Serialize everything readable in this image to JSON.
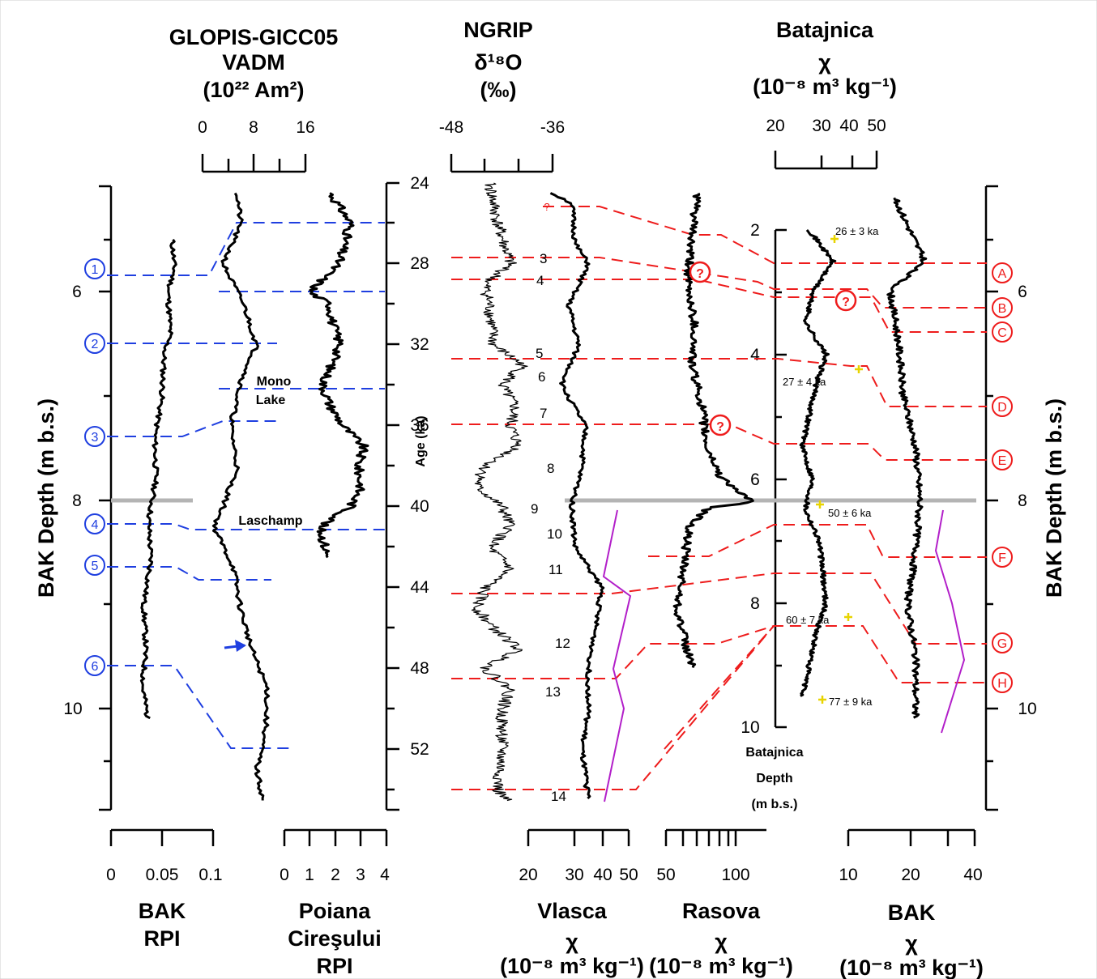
{
  "headers": {
    "glopis": [
      "GLOPIS-GICC05",
      "VADM",
      "(10²² Am²)"
    ],
    "ngrip": [
      "NGRIP",
      "δ¹⁸O",
      "(‰)"
    ],
    "batajnica": [
      "Batajnica",
      "χ",
      "(10⁻⁸ m³ kg⁻¹)"
    ],
    "bak_rpi": [
      "BAK",
      "RPI"
    ],
    "poiana": [
      "Poiana",
      "Cireşului",
      "RPI"
    ],
    "vlasca": [
      "Vlasca",
      "χ",
      "(10⁻⁸ m³ kg⁻¹)"
    ],
    "rasova": [
      "Rasova",
      "χ",
      "(10⁻⁸ m³ kg⁻¹)"
    ],
    "bak_chi": [
      "BAK",
      "χ",
      "(10⁻⁸ m³ kg⁻¹)"
    ]
  },
  "axis_labels": {
    "bak_depth_left": "BAK Depth (m b.s.)",
    "bak_depth_right": "BAK Depth (m b.s.)",
    "age": "Age (ka)",
    "batajnica_depth": [
      "Batajnica",
      "Depth",
      "(m b.s.)"
    ]
  },
  "ticks": {
    "glopis": [
      "0",
      "8",
      "16"
    ],
    "ngrip": [
      "-48",
      "-36"
    ],
    "batajnica_top": [
      "20",
      "30",
      "40",
      "50"
    ],
    "bak_depth": [
      "6",
      "8",
      "10"
    ],
    "age": [
      "24",
      "28",
      "32",
      "36",
      "40",
      "44",
      "48",
      "52"
    ],
    "batajnica_depth": [
      "2",
      "4",
      "6",
      "8",
      "10"
    ],
    "bak_rpi": [
      "0",
      "0.05",
      "0.1"
    ],
    "poiana": [
      "0",
      "1",
      "2",
      "3",
      "4"
    ],
    "vlasca": [
      "20",
      "30",
      "40",
      "50"
    ],
    "rasova": [
      "50",
      "100"
    ],
    "bak_chi": [
      "10",
      "20",
      "40"
    ]
  },
  "annotations": {
    "mono_lake": [
      "Mono",
      "Lake"
    ],
    "laschamp": "Laschamp",
    "question": "?",
    "red_q": "?",
    "blue_markers": [
      "1",
      "2",
      "3",
      "4",
      "5",
      "6"
    ],
    "red_markers": [
      "A",
      "B",
      "C",
      "D",
      "E",
      "F",
      "G",
      "H"
    ],
    "events": [
      "3",
      "4",
      "5",
      "6",
      "7",
      "8",
      "9",
      "10",
      "11",
      "12",
      "13",
      "14"
    ],
    "dates": [
      "26 ± 3 ka",
      "27 ± 4 ka",
      "50 ± 6 ka",
      "60 ± 7 ka",
      "77 ± 9 ka"
    ]
  },
  "chart_data": {
    "type": "line",
    "panels": [
      {
        "name": "BAK RPI",
        "x_unit": "RPI",
        "xlim": [
          0,
          0.1
        ],
        "y_axis": "BAK Depth (m b.s.)",
        "ylim": [
          4.4,
          10.5
        ],
        "depth": [
          5.5,
          5.8,
          6.0,
          6.4,
          6.6,
          7.0,
          7.4,
          7.8,
          8.2,
          8.6,
          9.0,
          9.4,
          9.8,
          10.1
        ],
        "values": [
          0.06,
          0.062,
          0.056,
          0.058,
          0.052,
          0.05,
          0.043,
          0.044,
          0.037,
          0.039,
          0.032,
          0.034,
          0.031,
          0.036
        ]
      },
      {
        "name": "GLOPIS-GICC05 VADM",
        "x_unit": "10^22 Am^2",
        "xlim": [
          0,
          16
        ],
        "y_axis": "Age (ka)",
        "ylim": [
          24,
          55
        ],
        "age": [
          24.5,
          26,
          28,
          30,
          32,
          34,
          36,
          38,
          40,
          41,
          43,
          45,
          47,
          49,
          51,
          53,
          54.5
        ],
        "values": [
          5.4,
          5.9,
          3.2,
          6.4,
          8.4,
          5.8,
          4.4,
          5.4,
          3.2,
          1.8,
          4.8,
          5.9,
          7.6,
          10.1,
          9.8,
          8.4,
          9.4
        ]
      },
      {
        "name": "Poiana Cireşului RPI",
        "x_unit": "RPI",
        "xlim": [
          0,
          4
        ],
        "y_axis": "Age (ka)",
        "ylim": [
          24,
          55
        ],
        "age": [
          24.5,
          26,
          28,
          29.4,
          30,
          31,
          32,
          34,
          35,
          36,
          37,
          38,
          39,
          40,
          41,
          42.5
        ],
        "values": [
          1.8,
          2.6,
          2.1,
          1.0,
          1.8,
          1.9,
          2.2,
          1.5,
          1.8,
          2.3,
          3.1,
          2.9,
          3.0,
          2.6,
          1.4,
          1.7
        ]
      },
      {
        "name": "NGRIP δ18O",
        "x_unit": "‰",
        "xlim": [
          -48,
          -36
        ],
        "y_axis": "Age (ka)",
        "ylim": [
          24,
          55
        ],
        "age": [
          24,
          26,
          28,
          29,
          30,
          32,
          33,
          34,
          35,
          36,
          37,
          38,
          39,
          40,
          41,
          42,
          43,
          44,
          45,
          46,
          47,
          48,
          49,
          50,
          52,
          54,
          54.5
        ],
        "values": [
          -43.5,
          -42.5,
          -41,
          -44,
          -43.5,
          -43,
          -39.5,
          -42,
          -40.5,
          -41,
          -40,
          -44,
          -45,
          -42,
          -41,
          -43.5,
          -41,
          -44,
          -45,
          -43,
          -40,
          -44,
          -41,
          -42,
          -42,
          -42.5,
          -41.5
        ]
      },
      {
        "name": "Vlasca",
        "x_unit": "10^-8 m^3 kg^-1",
        "xlim": [
          20,
          50
        ],
        "y_axis": "Age (ka)",
        "ylim": [
          24,
          55
        ],
        "age": [
          24.5,
          25,
          27,
          28,
          30,
          32,
          34,
          36,
          38,
          40,
          42,
          44,
          46,
          48,
          50,
          52,
          54.5
        ],
        "values": [
          27,
          33,
          34,
          38,
          32,
          35,
          30,
          37,
          36,
          33,
          34,
          42,
          40,
          38,
          38,
          36,
          38
        ]
      },
      {
        "name": "Rasova",
        "x_unit": "10^-8 m^3 kg^-1",
        "xlim": [
          50,
          120
        ],
        "y_axis": "Age (ka)",
        "ylim": [
          24,
          55
        ],
        "age": [
          24.5,
          27,
          29,
          31,
          33,
          35,
          37,
          38.5,
          39.8,
          40,
          41,
          43,
          45,
          47,
          48
        ],
        "values": [
          72,
          67,
          65,
          70,
          68,
          75,
          78,
          88,
          110,
          80,
          66,
          62,
          58,
          64,
          70
        ]
      },
      {
        "name": "Batajnica χ",
        "x_unit": "10^-8 m^3 kg^-1",
        "xlim": [
          20,
          50
        ],
        "y_axis": "Batajnica Depth (m b.s.)",
        "ylim": [
          2,
          10
        ],
        "depth": [
          2.0,
          2.5,
          3.0,
          3.5,
          4.0,
          4.5,
          5.0,
          5.5,
          6.0,
          6.5,
          7.0,
          7.5,
          8.0,
          8.5,
          9.0,
          9.5
        ],
        "values": [
          30,
          37,
          31,
          29,
          35,
          32,
          30,
          28,
          31,
          29,
          33,
          34,
          35,
          32,
          30,
          28
        ]
      },
      {
        "name": "BAK χ",
        "x_unit": "10^-8 m^3 kg^-1",
        "xlim": [
          10,
          40
        ],
        "y_axis": "BAK Depth (m b.s.)",
        "ylim": [
          4.4,
          10.5
        ],
        "depth": [
          5.1,
          5.7,
          6.0,
          6.5,
          7.0,
          7.5,
          8.0,
          8.5,
          9.0,
          9.5,
          10.1
        ],
        "values": [
          21,
          28,
          20,
          22,
          23,
          26,
          27,
          26,
          24,
          26,
          26
        ]
      }
    ],
    "correlation_ties": {
      "blue": [
        "1",
        "2",
        "3",
        "4",
        "5",
        "6"
      ],
      "red": [
        "A",
        "B",
        "C",
        "D",
        "E",
        "F",
        "G",
        "H"
      ]
    },
    "ages": [
      "26 ± 3 ka",
      "27 ± 4 ka",
      "50 ± 6 ka",
      "60 ± 7 ka",
      "77 ± 9 ka"
    ]
  }
}
